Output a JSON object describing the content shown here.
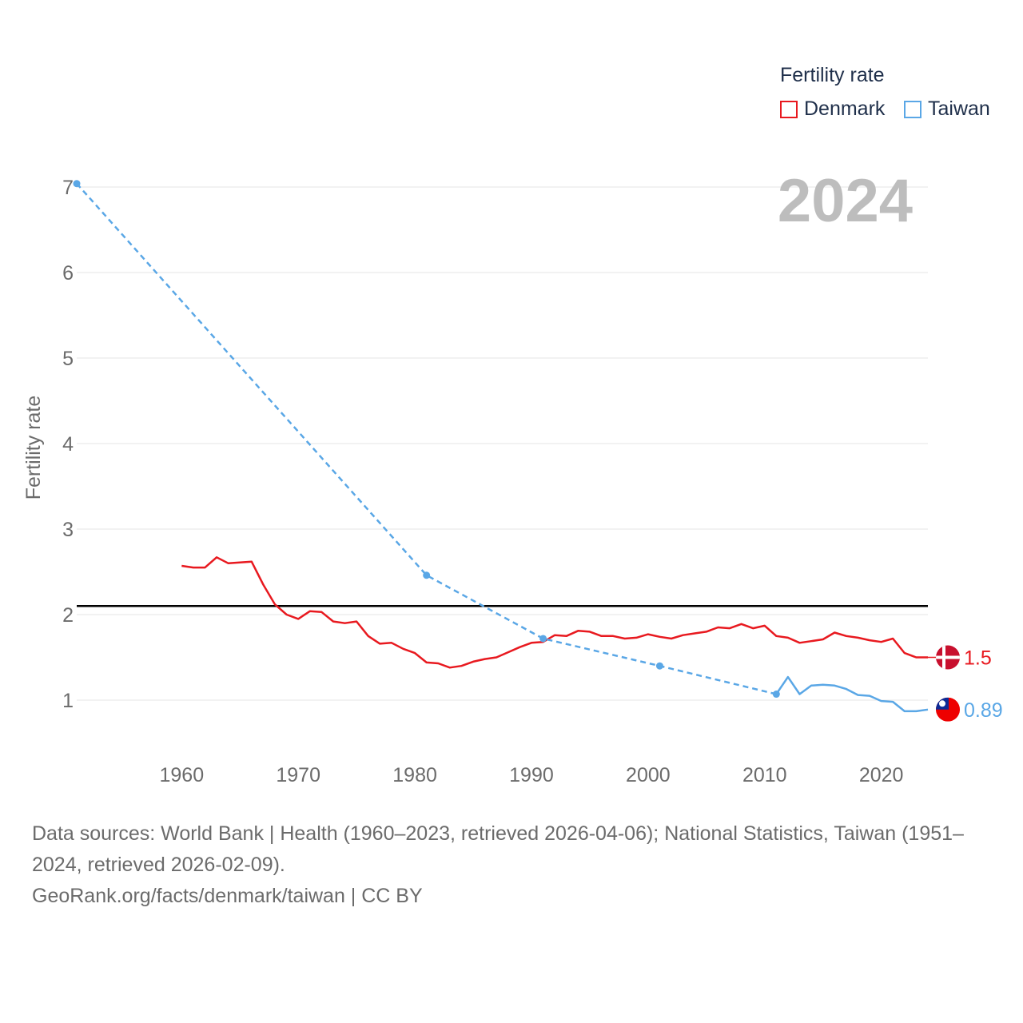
{
  "legend": {
    "title": "Fertility rate",
    "items": [
      {
        "name": "Denmark",
        "color": "#e8191f"
      },
      {
        "name": "Taiwan",
        "color": "#5aa7e6"
      }
    ]
  },
  "year_label": "2024",
  "source": {
    "line1": "Data sources: World Bank | Health (1960–2023, retrieved 2026-04-06); National Statistics, Taiwan (1951–2024, retrieved 2026-02-09).",
    "line2": "GeoRank.org/facts/denmark/taiwan | CC BY"
  },
  "chart_data": {
    "type": "line",
    "title": "Fertility rate",
    "ylabel": "Fertility rate",
    "xlabel": "",
    "xlim": [
      1951,
      2024
    ],
    "ylim": [
      0.5,
      7.1
    ],
    "y_ticks": [
      1,
      2,
      3,
      4,
      5,
      6,
      7
    ],
    "x_ticks": [
      1960,
      1970,
      1980,
      1990,
      2000,
      2010,
      2020
    ],
    "reference_line": {
      "y": 2.1,
      "color": "#000000"
    },
    "series": [
      {
        "name": "Denmark",
        "color": "#e8191f",
        "end_label": "1.5",
        "flag": "denmark-flag-icon",
        "x": [
          1960,
          1961,
          1962,
          1963,
          1964,
          1965,
          1966,
          1967,
          1968,
          1969,
          1970,
          1971,
          1972,
          1973,
          1974,
          1975,
          1976,
          1977,
          1978,
          1979,
          1980,
          1981,
          1982,
          1983,
          1984,
          1985,
          1986,
          1987,
          1988,
          1989,
          1990,
          1991,
          1992,
          1993,
          1994,
          1995,
          1996,
          1997,
          1998,
          1999,
          2000,
          2001,
          2002,
          2003,
          2004,
          2005,
          2006,
          2007,
          2008,
          2009,
          2010,
          2011,
          2012,
          2013,
          2014,
          2015,
          2016,
          2017,
          2018,
          2019,
          2020,
          2021,
          2022,
          2023,
          2024
        ],
        "values": [
          2.57,
          2.55,
          2.55,
          2.67,
          2.6,
          2.61,
          2.62,
          2.35,
          2.12,
          2.0,
          1.95,
          2.04,
          2.03,
          1.92,
          1.9,
          1.92,
          1.75,
          1.66,
          1.67,
          1.6,
          1.55,
          1.44,
          1.43,
          1.38,
          1.4,
          1.45,
          1.48,
          1.5,
          1.56,
          1.62,
          1.67,
          1.68,
          1.76,
          1.75,
          1.81,
          1.8,
          1.75,
          1.75,
          1.72,
          1.73,
          1.77,
          1.74,
          1.72,
          1.76,
          1.78,
          1.8,
          1.85,
          1.84,
          1.89,
          1.84,
          1.87,
          1.75,
          1.73,
          1.67,
          1.69,
          1.71,
          1.79,
          1.75,
          1.73,
          1.7,
          1.68,
          1.72,
          1.55,
          1.5,
          1.5
        ]
      },
      {
        "name": "Taiwan",
        "color": "#5aa7e6",
        "end_label": "0.89",
        "flag": "taiwan-flag-icon",
        "dashed_points": [
          [
            1951,
            7.04
          ],
          [
            1981,
            2.46
          ],
          [
            1991,
            1.72
          ],
          [
            2001,
            1.4
          ],
          [
            2011,
            1.07
          ]
        ],
        "x": [
          2011,
          2012,
          2013,
          2014,
          2015,
          2016,
          2017,
          2018,
          2019,
          2020,
          2021,
          2022,
          2023,
          2024
        ],
        "values": [
          1.07,
          1.27,
          1.07,
          1.17,
          1.18,
          1.17,
          1.13,
          1.06,
          1.05,
          0.99,
          0.98,
          0.87,
          0.87,
          0.89
        ]
      }
    ]
  }
}
